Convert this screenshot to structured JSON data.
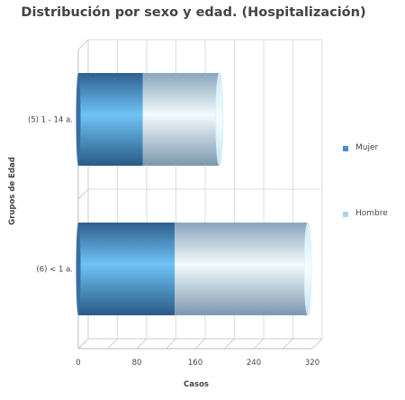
{
  "chart_data": {
    "type": "bar",
    "orientation": "horizontal",
    "stacked": true,
    "title": "Distribución por sexo y edad. (Hospitalización)",
    "xlabel": "Casos",
    "ylabel": "Grupos de Edad",
    "categories": [
      "(5) 1 - 14 a.",
      "(6) < 1 a."
    ],
    "series": [
      {
        "name": "Mujer",
        "values": [
          88,
          132
        ],
        "color": "#4f8fc8"
      },
      {
        "name": "Hombre",
        "values": [
          105,
          182
        ],
        "color": "#a8d4f0"
      }
    ],
    "xlim": [
      0,
      320
    ],
    "xticks": [
      "0",
      "80",
      "160",
      "240",
      "320"
    ],
    "grid": true,
    "legend_position": "right"
  }
}
